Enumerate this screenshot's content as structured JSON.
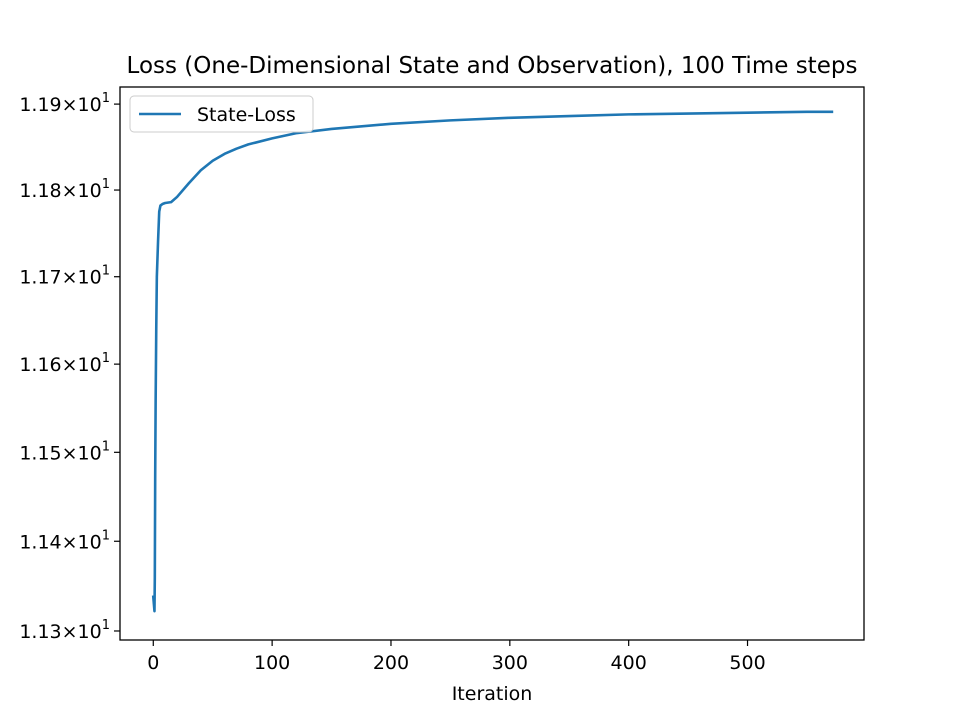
{
  "chart_data": {
    "type": "line",
    "title": "Loss (One-Dimensional State and Observation), 100 Time steps",
    "xlabel": "Iteration",
    "ylabel": "",
    "xlim": [
      -28,
      598
    ],
    "ylim": [
      11.29,
      11.92
    ],
    "y_scale": "log",
    "x_ticks": [
      0,
      100,
      200,
      300,
      400,
      500
    ],
    "y_ticks": [
      {
        "value": 11.3,
        "mantissa": "1.13",
        "exponent": "1"
      },
      {
        "value": 11.4,
        "mantissa": "1.14",
        "exponent": "1"
      },
      {
        "value": 11.5,
        "mantissa": "1.15",
        "exponent": "1"
      },
      {
        "value": 11.6,
        "mantissa": "1.16",
        "exponent": "1"
      },
      {
        "value": 11.7,
        "mantissa": "1.17",
        "exponent": "1"
      },
      {
        "value": 11.8,
        "mantissa": "1.18",
        "exponent": "1"
      },
      {
        "value": 11.9,
        "mantissa": "1.19",
        "exponent": "1"
      }
    ],
    "grid": false,
    "legend_position": "top-left",
    "series": [
      {
        "name": "State-Loss",
        "color": "#1f77b4",
        "x": [
          0,
          1,
          1.3,
          1.6,
          2,
          2.5,
          3,
          4,
          5,
          6,
          8,
          10,
          15,
          20,
          30,
          40,
          50,
          60,
          70,
          80,
          100,
          120,
          150,
          200,
          250,
          300,
          350,
          400,
          450,
          500,
          550,
          571
        ],
        "y": [
          11.338,
          11.322,
          11.36,
          11.47,
          11.56,
          11.64,
          11.7,
          11.74,
          11.775,
          11.782,
          11.784,
          11.785,
          11.786,
          11.792,
          11.808,
          11.823,
          11.834,
          11.842,
          11.848,
          11.853,
          11.86,
          11.866,
          11.871,
          11.877,
          11.881,
          11.884,
          11.886,
          11.888,
          11.889,
          11.89,
          11.891,
          11.891
        ]
      }
    ]
  }
}
